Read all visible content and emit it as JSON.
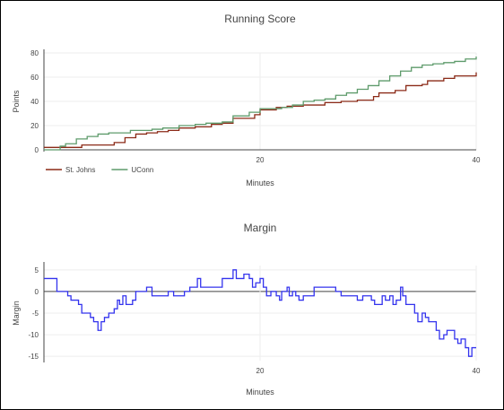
{
  "chart_data": [
    {
      "type": "line",
      "title": "Running Score",
      "xlabel": "Minutes",
      "ylabel": "Points",
      "xlim": [
        0,
        40
      ],
      "ylim": [
        0,
        80
      ],
      "x_ticks": [
        20,
        40
      ],
      "y_ticks": [
        0,
        20,
        40,
        60,
        80
      ],
      "grid": true,
      "legend": "bottom-left",
      "series": [
        {
          "name": "St. Johns",
          "color": "#8b2a17",
          "points": [
            [
              0,
              2
            ],
            [
              3,
              2
            ],
            [
              3.5,
              4
            ],
            [
              6,
              4
            ],
            [
              6.5,
              6
            ],
            [
              7.5,
              10
            ],
            [
              8.5,
              13
            ],
            [
              9.5,
              14
            ],
            [
              10.5,
              15
            ],
            [
              11.5,
              16
            ],
            [
              12.5,
              18
            ],
            [
              14,
              19
            ],
            [
              15.5,
              21
            ],
            [
              16.5,
              22
            ],
            [
              17.5,
              26
            ],
            [
              19.5,
              29
            ],
            [
              20,
              33
            ],
            [
              21.5,
              35
            ],
            [
              22.5,
              36
            ],
            [
              24,
              37
            ],
            [
              26,
              39
            ],
            [
              27.5,
              40
            ],
            [
              29,
              41
            ],
            [
              30.5,
              44
            ],
            [
              31,
              47
            ],
            [
              32.5,
              49
            ],
            [
              33.5,
              53
            ],
            [
              35,
              54
            ],
            [
              35.5,
              57
            ],
            [
              37,
              59
            ],
            [
              38,
              61
            ],
            [
              40,
              64
            ]
          ]
        },
        {
          "name": "UConn",
          "color": "#5e9b6b",
          "points": [
            [
              0,
              0
            ],
            [
              1,
              0
            ],
            [
              1.5,
              3
            ],
            [
              2,
              5
            ],
            [
              3,
              9
            ],
            [
              4,
              11
            ],
            [
              5,
              13
            ],
            [
              6,
              14
            ],
            [
              7,
              14
            ],
            [
              8,
              16
            ],
            [
              10,
              17
            ],
            [
              11,
              18
            ],
            [
              12.5,
              20
            ],
            [
              14,
              21
            ],
            [
              15,
              22
            ],
            [
              16.5,
              23
            ],
            [
              17.5,
              28
            ],
            [
              19,
              31
            ],
            [
              20,
              34
            ],
            [
              22,
              35
            ],
            [
              23,
              37
            ],
            [
              24,
              40
            ],
            [
              25,
              41
            ],
            [
              26,
              42
            ],
            [
              27,
              45
            ],
            [
              28,
              47
            ],
            [
              29,
              50
            ],
            [
              30,
              53
            ],
            [
              31,
              57
            ],
            [
              32,
              61
            ],
            [
              33,
              65
            ],
            [
              34,
              68
            ],
            [
              35,
              70
            ],
            [
              36,
              71
            ],
            [
              37,
              72
            ],
            [
              38,
              73
            ],
            [
              39,
              75
            ],
            [
              40,
              77
            ]
          ]
        }
      ]
    },
    {
      "type": "line",
      "title": "Margin",
      "xlabel": "Minutes",
      "ylabel": "Margin",
      "xlim": [
        0,
        40
      ],
      "ylim": [
        -16,
        6
      ],
      "x_ticks": [
        20,
        40
      ],
      "y_ticks": [
        -15,
        -10,
        -5,
        0,
        5
      ],
      "grid": true,
      "legend": "none",
      "series": [
        {
          "name": "",
          "color": "#3333ee",
          "points": [
            [
              0,
              3
            ],
            [
              1,
              3
            ],
            [
              1.2,
              0
            ],
            [
              2,
              0
            ],
            [
              2.2,
              -1
            ],
            [
              2.5,
              -2
            ],
            [
              3,
              -2
            ],
            [
              3.2,
              -3
            ],
            [
              3.5,
              -5
            ],
            [
              4,
              -5
            ],
            [
              4.3,
              -6
            ],
            [
              4.6,
              -7
            ],
            [
              5,
              -9
            ],
            [
              5.3,
              -7
            ],
            [
              5.6,
              -6
            ],
            [
              6,
              -5
            ],
            [
              6.5,
              -4
            ],
            [
              6.8,
              -2
            ],
            [
              7,
              -3
            ],
            [
              7.3,
              -1
            ],
            [
              7.6,
              -3
            ],
            [
              8,
              -3
            ],
            [
              8.2,
              -2
            ],
            [
              8.5,
              0
            ],
            [
              9,
              0
            ],
            [
              9.5,
              1
            ],
            [
              10,
              -1
            ],
            [
              10.5,
              -1
            ],
            [
              11,
              -1
            ],
            [
              11.5,
              0
            ],
            [
              12,
              -1
            ],
            [
              12.5,
              -1
            ],
            [
              13,
              0
            ],
            [
              13.5,
              1
            ],
            [
              14,
              1
            ],
            [
              14.2,
              3
            ],
            [
              14.5,
              1
            ],
            [
              15,
              1
            ],
            [
              16,
              1
            ],
            [
              16.5,
              3
            ],
            [
              17,
              3
            ],
            [
              17.5,
              5
            ],
            [
              17.8,
              3
            ],
            [
              18,
              3
            ],
            [
              18.5,
              4
            ],
            [
              19,
              3
            ],
            [
              19.3,
              1
            ],
            [
              19.6,
              2
            ],
            [
              20,
              3
            ],
            [
              20.3,
              1
            ],
            [
              20.6,
              -1
            ],
            [
              21,
              0
            ],
            [
              21.5,
              -1
            ],
            [
              21.8,
              -2
            ],
            [
              22,
              0
            ],
            [
              22.5,
              1
            ],
            [
              22.7,
              -1
            ],
            [
              23,
              0
            ],
            [
              23.3,
              -1
            ],
            [
              23.6,
              -2
            ],
            [
              24,
              -1
            ],
            [
              24.5,
              -1
            ],
            [
              25,
              1
            ],
            [
              25.5,
              1
            ],
            [
              26,
              1
            ],
            [
              26.5,
              1
            ],
            [
              27,
              0
            ],
            [
              27.5,
              -1
            ],
            [
              28,
              -1
            ],
            [
              28.5,
              -1
            ],
            [
              29,
              -2
            ],
            [
              29.5,
              -1
            ],
            [
              30,
              -1
            ],
            [
              30.3,
              -2
            ],
            [
              30.6,
              -3
            ],
            [
              31,
              -3
            ],
            [
              31.3,
              -1
            ],
            [
              31.6,
              -2
            ],
            [
              32,
              -1
            ],
            [
              32.3,
              -3
            ],
            [
              32.6,
              -2
            ],
            [
              33,
              1
            ],
            [
              33.2,
              -1
            ],
            [
              33.5,
              -3
            ],
            [
              34,
              -3
            ],
            [
              34.3,
              -5
            ],
            [
              34.6,
              -7
            ],
            [
              35,
              -5
            ],
            [
              35.3,
              -6
            ],
            [
              35.6,
              -7
            ],
            [
              36,
              -7
            ],
            [
              36.3,
              -9
            ],
            [
              36.6,
              -11
            ],
            [
              37,
              -10
            ],
            [
              37.3,
              -9
            ],
            [
              37.6,
              -9
            ],
            [
              38,
              -11
            ],
            [
              38.3,
              -12
            ],
            [
              38.6,
              -11
            ],
            [
              39,
              -13
            ],
            [
              39.3,
              -15
            ],
            [
              39.6,
              -13
            ],
            [
              40,
              -13
            ]
          ]
        }
      ]
    }
  ]
}
